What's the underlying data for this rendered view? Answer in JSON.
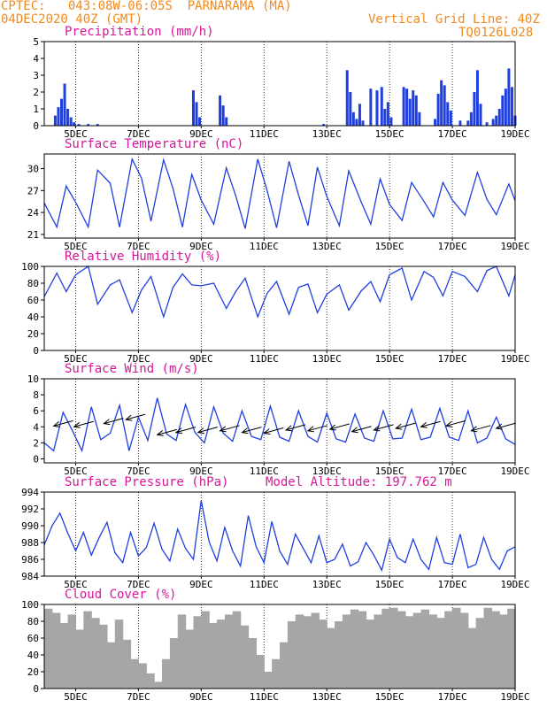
{
  "header": {
    "line1": "CPTEC:   043:08W-06:05S  PARNARAMA (MA)",
    "line2": "04DEC2020 40Z (GMT)",
    "grid_note": "Vertical Grid Line: 40Z",
    "run_code": "TQ0126L028"
  },
  "colors": {
    "header": "#f08a1c",
    "title": "#d6179a",
    "series": "#1f3fe0",
    "cloud": "#a6a6a6",
    "wind_arrow": "#000000"
  },
  "x_axis": {
    "range_days": [
      4.0,
      19.0
    ],
    "tick_days": [
      5,
      7,
      9,
      11,
      13,
      15,
      17,
      19
    ],
    "tick_labels": [
      "5DEC",
      "7DEC",
      "9DEC",
      "11DEC",
      "13DEC",
      "15DEC",
      "17DEC",
      "19DEC"
    ]
  },
  "model_altitude_label": "Model Altitude: 197.762 m",
  "chart_data": [
    {
      "type": "bar",
      "title": "Precipitation (mm/h)",
      "ylim": [
        0,
        5
      ],
      "yticks": [
        0,
        1,
        2,
        3,
        4,
        5
      ],
      "x": [
        4.35,
        4.45,
        4.55,
        4.65,
        4.75,
        4.85,
        4.95,
        5.1,
        5.4,
        5.7,
        8.75,
        8.85,
        8.95,
        9.6,
        9.7,
        9.8,
        12.9,
        13.65,
        13.75,
        13.85,
        13.95,
        14.05,
        14.15,
        14.4,
        14.6,
        14.75,
        14.85,
        14.95,
        15.05,
        15.45,
        15.55,
        15.65,
        15.75,
        15.85,
        15.95,
        16.45,
        16.55,
        16.65,
        16.75,
        16.85,
        16.95,
        17.25,
        17.5,
        17.6,
        17.7,
        17.8,
        17.9,
        18.1,
        18.3,
        18.4,
        18.5,
        18.6,
        18.7,
        18.8,
        18.9,
        19.0
      ],
      "values": [
        0.6,
        1.1,
        1.6,
        2.5,
        1.0,
        0.5,
        0.2,
        0.1,
        0.1,
        0.1,
        2.1,
        1.4,
        0.5,
        1.8,
        1.2,
        0.5,
        0.1,
        3.3,
        2.0,
        0.8,
        0.4,
        1.3,
        0.3,
        2.2,
        2.1,
        2.3,
        1.0,
        1.4,
        0.5,
        2.3,
        2.2,
        1.6,
        2.1,
        1.8,
        0.8,
        0.4,
        1.9,
        2.7,
        2.4,
        1.4,
        0.9,
        0.3,
        0.3,
        0.8,
        2.0,
        3.3,
        1.3,
        0.2,
        0.4,
        0.6,
        1.0,
        1.8,
        2.2,
        3.4,
        2.3,
        0.6
      ]
    },
    {
      "type": "line",
      "title": "Surface Temperature (nC)",
      "ylim": [
        20.5,
        32
      ],
      "yticks": [
        21,
        24,
        27,
        30
      ],
      "x": [
        4.0,
        4.4,
        4.7,
        5.0,
        5.4,
        5.7,
        6.1,
        6.4,
        6.8,
        7.1,
        7.4,
        7.8,
        8.1,
        8.4,
        8.7,
        9.0,
        9.4,
        9.8,
        10.1,
        10.4,
        10.8,
        11.1,
        11.4,
        11.8,
        12.1,
        12.4,
        12.7,
        13.0,
        13.4,
        13.7,
        14.1,
        14.4,
        14.7,
        15.0,
        15.4,
        15.7,
        16.1,
        16.4,
        16.7,
        17.0,
        17.4,
        17.8,
        18.1,
        18.4,
        18.8,
        19.0
      ],
      "values": [
        25.3,
        22.0,
        27.6,
        25.4,
        22.0,
        29.8,
        28.0,
        22.0,
        31.3,
        28.7,
        22.8,
        31.2,
        27.3,
        22.0,
        29.2,
        25.7,
        22.4,
        30.1,
        26.3,
        21.8,
        31.3,
        27.0,
        21.9,
        31.0,
        26.4,
        22.2,
        30.2,
        26.2,
        22.2,
        29.7,
        25.4,
        22.4,
        28.6,
        25.1,
        22.9,
        28.1,
        25.5,
        23.4,
        28.1,
        25.7,
        23.6,
        29.5,
        25.8,
        23.7,
        27.9,
        25.6
      ]
    },
    {
      "type": "line",
      "title": "Relative Humidity (%)",
      "ylim": [
        0,
        100
      ],
      "yticks": [
        0,
        20,
        40,
        60,
        80,
        100
      ],
      "x": [
        4.0,
        4.4,
        4.7,
        5.0,
        5.4,
        5.7,
        6.1,
        6.4,
        6.8,
        7.1,
        7.4,
        7.8,
        8.1,
        8.4,
        8.7,
        9.0,
        9.4,
        9.8,
        10.1,
        10.4,
        10.8,
        11.1,
        11.4,
        11.8,
        12.1,
        12.4,
        12.7,
        13.0,
        13.4,
        13.7,
        14.1,
        14.4,
        14.7,
        15.0,
        15.4,
        15.7,
        16.1,
        16.4,
        16.7,
        17.0,
        17.4,
        17.8,
        18.1,
        18.4,
        18.8,
        19.0
      ],
      "values": [
        64,
        92,
        70,
        90,
        100,
        55,
        78,
        84,
        45,
        72,
        88,
        40,
        75,
        91,
        78,
        77,
        80,
        50,
        70,
        86,
        40,
        68,
        82,
        43,
        75,
        79,
        45,
        67,
        78,
        48,
        71,
        82,
        58,
        90,
        98,
        60,
        94,
        87,
        65,
        94,
        88,
        70,
        95,
        100,
        65,
        90
      ]
    },
    {
      "type": "line",
      "title": "Surface Wind (m/s)",
      "ylim": [
        -0.5,
        10
      ],
      "yticks": [
        0,
        2,
        4,
        6,
        8,
        10
      ],
      "x": [
        4.0,
        4.3,
        4.6,
        4.9,
        5.2,
        5.5,
        5.8,
        6.1,
        6.4,
        6.7,
        7.0,
        7.3,
        7.6,
        7.9,
        8.2,
        8.5,
        8.8,
        9.1,
        9.4,
        9.7,
        10.0,
        10.3,
        10.6,
        10.9,
        11.2,
        11.5,
        11.8,
        12.1,
        12.4,
        12.7,
        13.0,
        13.3,
        13.6,
        13.9,
        14.2,
        14.5,
        14.8,
        15.1,
        15.4,
        15.7,
        16.0,
        16.3,
        16.6,
        16.9,
        17.2,
        17.5,
        17.8,
        18.1,
        18.4,
        18.7,
        19.0
      ],
      "values": [
        2.0,
        1.0,
        5.8,
        3.5,
        1.0,
        6.5,
        2.4,
        3.2,
        6.7,
        1.0,
        5.2,
        2.3,
        7.6,
        3.1,
        2.3,
        6.8,
        3.3,
        2.0,
        6.5,
        3.2,
        2.2,
        6.0,
        2.8,
        2.4,
        6.6,
        2.7,
        2.2,
        6.0,
        2.8,
        2.1,
        5.7,
        2.5,
        2.1,
        5.6,
        2.6,
        2.2,
        6.0,
        2.5,
        2.6,
        6.2,
        2.4,
        2.7,
        6.3,
        2.7,
        2.3,
        6.0,
        2.0,
        2.6,
        5.2,
        2.5,
        1.8
      ],
      "arrow_days": [
        4.3,
        4.95,
        5.9,
        6.6,
        7.6,
        8.2,
        8.9,
        9.6,
        10.3,
        11.0,
        11.7,
        12.4,
        13.1,
        13.8,
        14.5,
        15.2,
        16.0,
        16.8,
        17.6,
        18.4
      ],
      "arrow_speed": [
        4.1,
        4.0,
        4.4,
        4.9,
        3.0,
        3.3,
        3.3,
        3.5,
        3.3,
        3.2,
        3.6,
        3.5,
        3.7,
        3.4,
        3.6,
        3.8,
        4.0,
        4.1,
        3.5,
        3.8
      ]
    },
    {
      "type": "line",
      "title": "Surface Pressure (hPa)",
      "ylim": [
        984,
        994
      ],
      "yticks": [
        984,
        986,
        988,
        990,
        992,
        994
      ],
      "x": [
        4.0,
        4.25,
        4.5,
        4.75,
        5.0,
        5.25,
        5.5,
        5.75,
        6.0,
        6.25,
        6.5,
        6.75,
        7.0,
        7.25,
        7.5,
        7.75,
        8.0,
        8.25,
        8.5,
        8.75,
        9.0,
        9.25,
        9.5,
        9.75,
        10.0,
        10.25,
        10.5,
        10.75,
        11.0,
        11.25,
        11.5,
        11.75,
        12.0,
        12.25,
        12.5,
        12.75,
        13.0,
        13.25,
        13.5,
        13.75,
        14.0,
        14.25,
        14.5,
        14.75,
        15.0,
        15.25,
        15.5,
        15.75,
        16.0,
        16.25,
        16.5,
        16.75,
        17.0,
        17.25,
        17.5,
        17.75,
        18.0,
        18.25,
        18.5,
        18.75,
        19.0
      ],
      "values": [
        987.7,
        990.0,
        991.5,
        989.1,
        987.0,
        989.2,
        986.5,
        988.6,
        990.4,
        986.8,
        985.6,
        989.2,
        986.4,
        987.4,
        990.3,
        987.2,
        985.8,
        989.6,
        987.3,
        986.0,
        993.0,
        988.1,
        985.8,
        989.8,
        987.0,
        985.2,
        991.2,
        987.5,
        985.6,
        990.5,
        987.0,
        985.4,
        989.0,
        987.3,
        985.6,
        988.8,
        985.6,
        986.0,
        987.8,
        985.2,
        985.7,
        988.0,
        986.5,
        984.7,
        988.4,
        986.2,
        985.6,
        988.4,
        986.0,
        984.8,
        988.6,
        985.6,
        985.4,
        989.0,
        985.0,
        985.4,
        988.6,
        986.0,
        984.8,
        987.0,
        987.5
      ]
    },
    {
      "type": "bar",
      "title": "Cloud Cover (%)",
      "ylim": [
        0,
        100
      ],
      "yticks": [
        0,
        20,
        40,
        60,
        80,
        100
      ],
      "x": [
        4.0,
        4.25,
        4.5,
        4.75,
        5.0,
        5.25,
        5.5,
        5.75,
        6.0,
        6.25,
        6.5,
        6.75,
        7.0,
        7.25,
        7.5,
        7.75,
        8.0,
        8.25,
        8.5,
        8.75,
        9.0,
        9.25,
        9.5,
        9.75,
        10.0,
        10.25,
        10.5,
        10.75,
        11.0,
        11.25,
        11.5,
        11.75,
        12.0,
        12.25,
        12.5,
        12.75,
        13.0,
        13.25,
        13.5,
        13.75,
        14.0,
        14.25,
        14.5,
        14.75,
        15.0,
        15.25,
        15.5,
        15.75,
        16.0,
        16.25,
        16.5,
        16.75,
        17.0,
        17.25,
        17.5,
        17.75,
        18.0,
        18.25,
        18.5,
        18.75,
        19.0
      ],
      "values": [
        95,
        90,
        78,
        88,
        70,
        92,
        84,
        76,
        55,
        82,
        58,
        35,
        30,
        18,
        8,
        35,
        60,
        88,
        70,
        86,
        92,
        78,
        82,
        88,
        92,
        75,
        60,
        40,
        20,
        35,
        55,
        80,
        88,
        86,
        90,
        82,
        72,
        80,
        88,
        94,
        92,
        82,
        88,
        95,
        96,
        92,
        86,
        90,
        94,
        88,
        84,
        92,
        96,
        90,
        72,
        84,
        96,
        92,
        88,
        95,
        96
      ]
    }
  ]
}
